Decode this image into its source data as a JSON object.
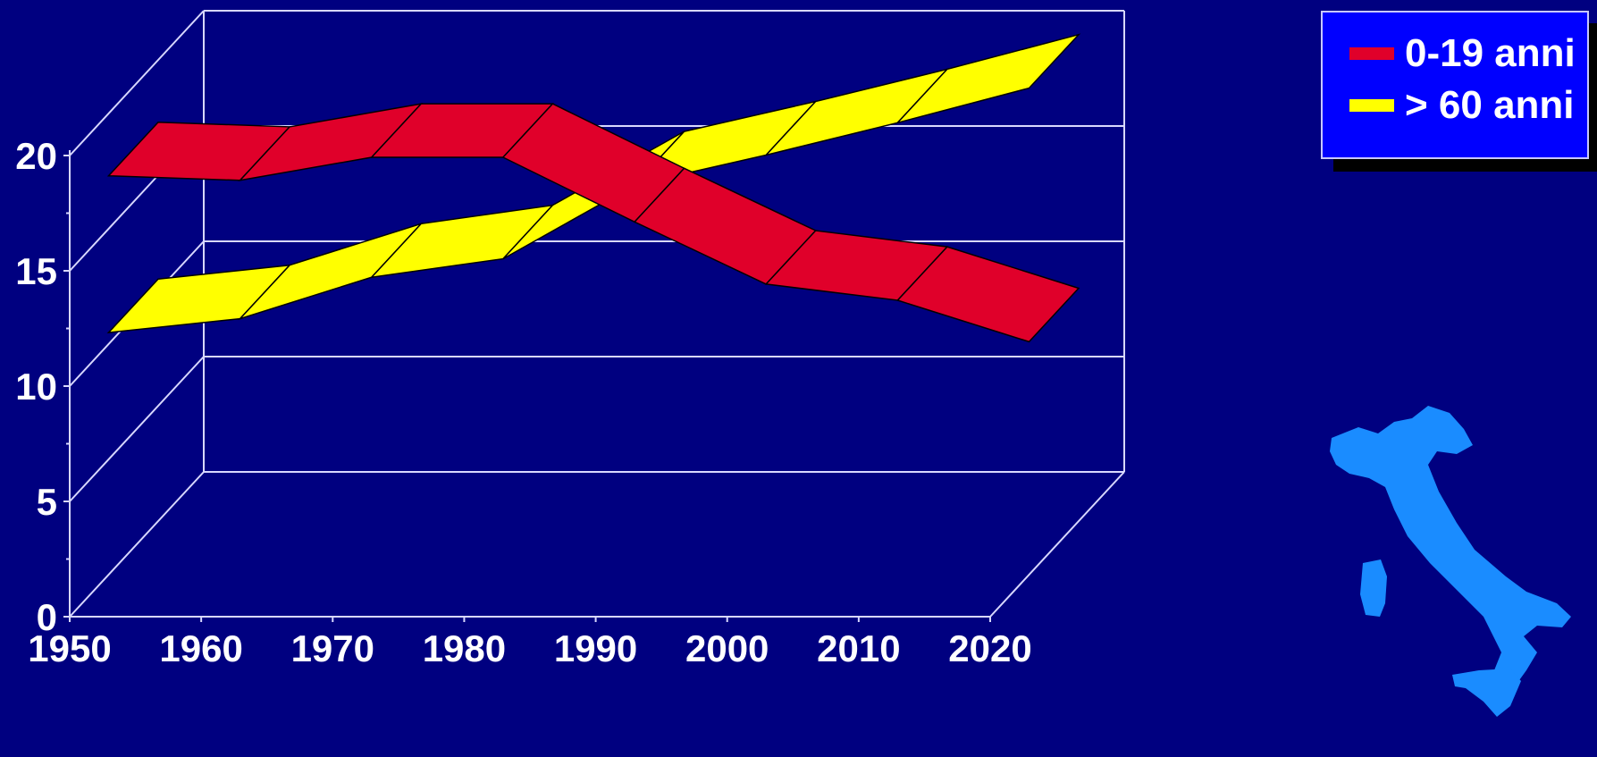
{
  "chart_data": {
    "type": "line",
    "x": [
      1950,
      1960,
      1970,
      1980,
      1990,
      2000,
      2010,
      2020
    ],
    "series": [
      {
        "name": "0-19 anni",
        "color": "#e0002a",
        "values": [
          17.3,
          17.1,
          18.1,
          18.1,
          15.3,
          12.6,
          11.9,
          10.1
        ]
      },
      {
        "name": "> 60 anni",
        "color": "#ffff00",
        "values": [
          10.5,
          11.1,
          12.9,
          13.7,
          16.9,
          18.2,
          19.6,
          21.1
        ]
      }
    ],
    "yticks": [
      0,
      5,
      10,
      15,
      20
    ],
    "xticks": [
      1950,
      1960,
      1970,
      1980,
      1990,
      2000,
      2010,
      2020
    ],
    "ylim": [
      0,
      20
    ],
    "xlim": [
      1950,
      2020
    ],
    "grid": true,
    "legend": "top-right",
    "style": "3d-ribbon"
  },
  "legend": {
    "items": [
      {
        "label": "0-19 anni",
        "color": "#e0002a"
      },
      {
        "label": "> 60 anni",
        "color": "#ffff00"
      }
    ]
  },
  "map": {
    "icon": "italy-map-icon",
    "color": "#1a8cff"
  }
}
